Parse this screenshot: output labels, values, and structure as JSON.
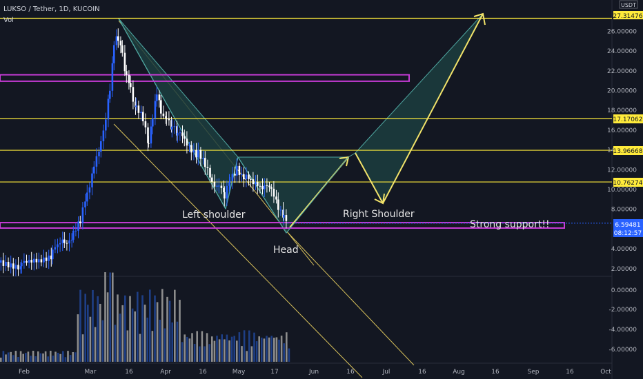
{
  "header": {
    "symbol": "LUKSO / Tether, 1D, KUCOIN",
    "volume_label": "Vol",
    "currency": "USDT"
  },
  "chart_data": {
    "type": "candlestick",
    "price_axis_ticks": [
      "26.00000",
      "24.00000",
      "22.00000",
      "20.00000",
      "18.00000",
      "16.00000",
      "14.00000",
      "12.00000",
      "10.00000",
      "8.00000",
      "4.00000",
      "2.00000"
    ],
    "volume_axis_ticks": [
      "0.00000",
      "-2.00000",
      "-4.00000",
      "-6.00000"
    ],
    "time_axis_labels": [
      "Feb",
      "Mar",
      "16",
      "Apr",
      "16",
      "May",
      "17",
      "Jun",
      "16",
      "Jul",
      "16",
      "Aug",
      "16",
      "Sep",
      "16",
      "Oct"
    ],
    "price_labels": {
      "top": "27.31476",
      "level_1": "17.17062",
      "level_2": "13.96668",
      "level_3": "10.76274",
      "current": "6.59481",
      "countdown": "08:12:57"
    },
    "horizontal_levels": [
      27.31476,
      17.17062,
      13.96668,
      10.76274
    ],
    "zones": [
      {
        "low": 20.95,
        "high": 21.6
      },
      {
        "low": 6.1,
        "high": 6.65
      }
    ],
    "annotations": {
      "left_shoulder": "Left shoulder",
      "head": "Head",
      "right_shoulder": "Right Shoulder",
      "support": "Strong support!!"
    },
    "colors": {
      "up_candle": "#2962ff",
      "down_candle": "#ffffff",
      "level_line": "#ffeb3b",
      "zone": "#c83bd7",
      "pattern_fill": "#1c3d3e",
      "pattern_edge": "#4fa6a0",
      "channel": "#d9c25b",
      "volume_up": "#1e3f86",
      "volume_down": "#8d8d8d",
      "current_price": "#2962ff"
    },
    "grid": false,
    "legend": "none"
  }
}
